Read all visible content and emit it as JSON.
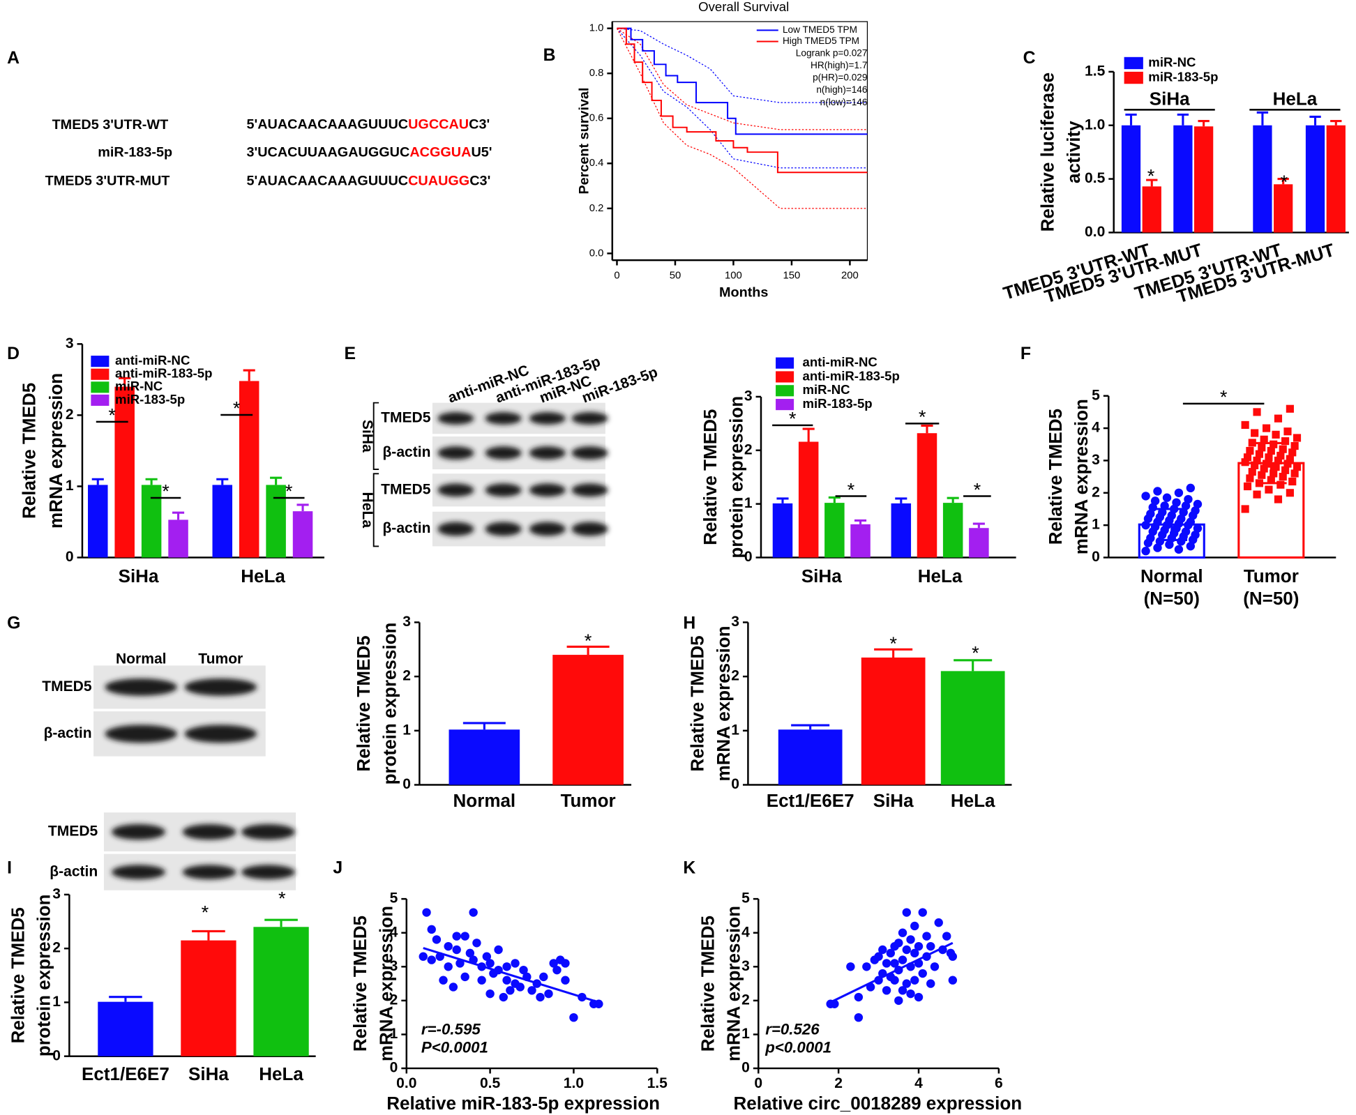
{
  "chart_data": [
    {
      "type": "sequence",
      "panel": "A",
      "site_color": "#ff0000",
      "rows": [
        {
          "label": "TMED5 3'UTR-WT",
          "seq": "5'AUACAACAAAGUUUC",
          "site": "UGCCAU",
          "end": "C3'"
        },
        {
          "label": "miR-183-5p",
          "seq": "3'UCACUUAAGAUGGUC",
          "site": "ACGGUA",
          "end": "U5'"
        },
        {
          "label": "TMED5 3'UTR-MUT",
          "seq": "5'AUACAACAAAGUUUC",
          "site": "CUAUGG",
          "end": "C3'"
        }
      ]
    },
    {
      "type": "line",
      "panel": "B",
      "title": "Overall Survival",
      "xlabel": "Months",
      "ylabel": "Percent survival",
      "xlim": [
        -4,
        215
      ],
      "xticks": [
        0,
        50,
        100,
        150,
        200
      ],
      "ylim": [
        -0.03,
        1.03
      ],
      "yticks": [
        {
          "value": 0,
          "label": "0.0"
        },
        0.2,
        0.4,
        0.6,
        0.8,
        {
          "value": 1,
          "label": "1.0"
        }
      ],
      "series": [
        {
          "name": "Low TMED5 TPM",
          "color": "#0000ff",
          "x": [
            0,
            12,
            12,
            22,
            22,
            32,
            32,
            42,
            42,
            52,
            52,
            68,
            68,
            95,
            95,
            102,
            102,
            215
          ],
          "values": [
            1,
            1,
            0.95,
            0.95,
            0.9,
            0.9,
            0.84,
            0.84,
            0.79,
            0.79,
            0.76,
            0.76,
            0.67,
            0.67,
            0.6,
            0.6,
            0.53,
            0.53
          ]
        },
        {
          "name": "High TMED5 TPM",
          "color": "#ff0000",
          "x": [
            0,
            8,
            8,
            15,
            15,
            22,
            22,
            30,
            30,
            38,
            38,
            48,
            48,
            60,
            60,
            85,
            85,
            100,
            100,
            112,
            112,
            138,
            138,
            215
          ],
          "values": [
            1,
            1,
            0.93,
            0.93,
            0.85,
            0.85,
            0.76,
            0.76,
            0.68,
            0.68,
            0.61,
            0.61,
            0.56,
            0.56,
            0.54,
            0.54,
            0.5,
            0.5,
            0.47,
            0.47,
            0.45,
            0.45,
            0.36,
            0.36
          ]
        }
      ],
      "bands": [
        {
          "color": "#0000ff",
          "x": [
            0,
            20,
            40,
            60,
            80,
            100,
            140,
            215
          ],
          "values": [
            1,
            0.99,
            0.93,
            0.88,
            0.82,
            0.7,
            0.67,
            0.67
          ]
        },
        {
          "color": "#0000ff",
          "x": [
            0,
            20,
            40,
            60,
            80,
            100,
            140,
            215
          ],
          "values": [
            1,
            0.88,
            0.72,
            0.65,
            0.55,
            0.42,
            0.38,
            0.38
          ]
        },
        {
          "color": "#ff0000",
          "x": [
            0,
            20,
            40,
            60,
            80,
            100,
            140,
            215
          ],
          "values": [
            1,
            0.93,
            0.75,
            0.66,
            0.62,
            0.58,
            0.55,
            0.55
          ]
        },
        {
          "color": "#ff0000",
          "x": [
            0,
            20,
            40,
            60,
            80,
            100,
            140,
            215
          ],
          "values": [
            1,
            0.8,
            0.58,
            0.48,
            0.44,
            0.38,
            0.2,
            0.2
          ]
        }
      ],
      "annotations": [
        "Logrank p=0.027",
        "HR(high)=1.7",
        "p(HR)=0.029",
        "n(high)=146",
        "n(low)=146"
      ]
    },
    {
      "type": "bar",
      "panel": "C",
      "ylabel": [
        "Relative luciferase",
        "activity"
      ],
      "categories": [
        "TMED5 3'UTR-WT",
        "TMED5 3'UTR-MUT",
        "TMED5 3'UTR-WT",
        "TMED5 3'UTR-MUT"
      ],
      "groups": [
        "SiHa",
        "HeLa"
      ],
      "ylim": [
        0,
        1.5
      ],
      "yticks": [
        {
          "value": 0,
          "label": "0.0"
        },
        0.5,
        {
          "value": 1,
          "label": "1.0"
        },
        1.5
      ],
      "series": [
        {
          "name": "miR-NC",
          "color": "#0a0aff",
          "values": [
            1.0,
            1.0,
            1.0,
            1.0
          ],
          "errors": [
            0.1,
            0.1,
            0.12,
            0.08
          ]
        },
        {
          "name": "miR-183-5p",
          "color": "#ff0a0a",
          "values": [
            0.43,
            0.99,
            0.45,
            1.0
          ],
          "errors": [
            0.06,
            0.05,
            0.05,
            0.04
          ]
        }
      ],
      "significance_label": "*"
    },
    {
      "type": "bar",
      "panel": "D",
      "ylabel": [
        "Relative TMED5",
        "mRNA expression"
      ],
      "categories": [
        "SiHa",
        "HeLa"
      ],
      "ylim": [
        0,
        3
      ],
      "yticks": [
        0,
        1,
        2,
        3
      ],
      "series": [
        {
          "name": "anti-miR-NC",
          "color": "#0a0aff",
          "values": [
            1.02,
            1.02
          ],
          "errors": [
            0.08,
            0.08
          ]
        },
        {
          "name": "anti-miR-183-5p",
          "color": "#ff0a0a",
          "values": [
            2.4,
            2.48
          ],
          "errors": [
            0.12,
            0.15
          ]
        },
        {
          "name": "miR-NC",
          "color": "#10c010",
          "values": [
            1.02,
            1.02
          ],
          "errors": [
            0.08,
            0.1
          ]
        },
        {
          "name": "miR-183-5p",
          "color": "#a31ff0",
          "values": [
            0.53,
            0.65
          ],
          "errors": [
            0.1,
            0.09
          ]
        }
      ],
      "significance_label": "*"
    },
    {
      "type": "bar",
      "panel": "E",
      "ylabel": [
        "Relative TMED5",
        "protein expression"
      ],
      "categories": [
        "SiHa",
        "HeLa"
      ],
      "ylim": [
        0,
        3
      ],
      "yticks": [
        0,
        1,
        2,
        3
      ],
      "series": [
        {
          "name": "anti-miR-NC",
          "color": "#0a0aff",
          "values": [
            1.01,
            1.01
          ],
          "errors": [
            0.09,
            0.09
          ]
        },
        {
          "name": "anti-miR-183-5p",
          "color": "#ff0a0a",
          "values": [
            2.16,
            2.32
          ],
          "errors": [
            0.24,
            0.14
          ]
        },
        {
          "name": "miR-NC",
          "color": "#10c010",
          "values": [
            1.02,
            1.02
          ],
          "errors": [
            0.1,
            0.09
          ]
        },
        {
          "name": "miR-183-5p",
          "color": "#a31ff0",
          "values": [
            0.62,
            0.55
          ],
          "errors": [
            0.07,
            0.08
          ]
        }
      ],
      "blot": {
        "lanes": [
          "anti-miR-NC",
          "anti-miR-183-5p",
          "miR-NC",
          "miR-183-5p"
        ],
        "rows": [
          "TMED5",
          "β-actin",
          "TMED5",
          "β-actin"
        ],
        "groups": [
          "SiHa",
          "HeLa"
        ]
      },
      "significance_label": "*"
    },
    {
      "type": "dotbar",
      "panel": "F",
      "ylabel": [
        "Relative TMED5",
        "mRNA expression"
      ],
      "categories": [
        [
          "Normal",
          "(N=50)"
        ],
        [
          "Tumor",
          "(N=50)"
        ]
      ],
      "ylim": [
        0,
        5
      ],
      "yticks": [
        0,
        1,
        2,
        3,
        4,
        5
      ],
      "values": [
        1.02,
        2.92
      ],
      "errors": [
        0.48,
        0.62
      ],
      "colors": [
        "#0a0aff",
        "#ff0a0a"
      ],
      "points": [
        [
          0.2,
          0.25,
          0.3,
          0.35,
          0.4,
          0.45,
          0.5,
          0.5,
          0.55,
          0.6,
          0.6,
          0.65,
          0.7,
          0.7,
          0.75,
          0.8,
          0.8,
          0.85,
          0.9,
          0.9,
          0.95,
          1.0,
          1.0,
          1.0,
          1.05,
          1.1,
          1.1,
          1.15,
          1.2,
          1.2,
          1.25,
          1.3,
          1.3,
          1.35,
          1.4,
          1.4,
          1.45,
          1.5,
          1.55,
          1.6,
          1.6,
          1.65,
          1.7,
          1.75,
          1.8,
          1.85,
          1.9,
          2.0,
          2.05,
          2.15
        ],
        [
          1.5,
          1.8,
          1.95,
          2.0,
          2.1,
          2.2,
          2.25,
          2.3,
          2.35,
          2.4,
          2.45,
          2.5,
          2.55,
          2.6,
          2.6,
          2.65,
          2.7,
          2.75,
          2.8,
          2.8,
          2.85,
          2.9,
          2.9,
          2.95,
          3.0,
          3.0,
          3.05,
          3.1,
          3.1,
          3.15,
          3.2,
          3.25,
          3.3,
          3.3,
          3.35,
          3.4,
          3.45,
          3.5,
          3.55,
          3.6,
          3.65,
          3.7,
          3.8,
          3.85,
          3.9,
          4.0,
          4.1,
          4.3,
          4.5,
          4.6
        ]
      ],
      "markers": [
        "circle",
        "square"
      ],
      "significance_label": "*"
    },
    {
      "type": "bar",
      "panel": "G",
      "ylabel": [
        "Relative TMED5",
        "protein expression"
      ],
      "categories": [
        "Normal",
        "Tumor"
      ],
      "ylim": [
        0,
        3
      ],
      "yticks": [
        0,
        1,
        2,
        3
      ],
      "values": [
        1.02,
        2.4
      ],
      "errors": [
        0.12,
        0.15
      ],
      "colors": [
        "#0a0aff",
        "#ff0a0a"
      ],
      "blot": {
        "lanes": [
          "Normal",
          "Tumor"
        ],
        "rows": [
          "TMED5",
          "β-actin"
        ]
      },
      "significance_label": "*"
    },
    {
      "type": "bar",
      "panel": "H",
      "ylabel": [
        "Relative TMED5",
        "mRNA expression"
      ],
      "categories": [
        "Ect1/E6E7",
        "SiHa",
        "HeLa"
      ],
      "ylim": [
        0,
        3
      ],
      "yticks": [
        0,
        1,
        2,
        3
      ],
      "values": [
        1.02,
        2.35,
        2.1
      ],
      "errors": [
        0.08,
        0.15,
        0.2
      ],
      "colors": [
        "#0a0aff",
        "#ff0a0a",
        "#10c010"
      ],
      "significance_label": "*"
    },
    {
      "type": "bar",
      "panel": "I",
      "ylabel": [
        "Relative TMED5",
        "protein expression"
      ],
      "categories": [
        "Ect1/E6E7",
        "SiHa",
        "HeLa"
      ],
      "ylim": [
        0,
        3
      ],
      "yticks": [
        0,
        1,
        2,
        3
      ],
      "values": [
        1.01,
        2.15,
        2.4
      ],
      "errors": [
        0.09,
        0.17,
        0.13
      ],
      "colors": [
        "#0a0aff",
        "#ff0a0a",
        "#10c010"
      ],
      "blot": {
        "rows": [
          "TMED5",
          "β-actin"
        ]
      },
      "significance_label": "*"
    },
    {
      "type": "scatter",
      "panel": "J",
      "ylabel": [
        "Relative TMED5",
        "mRNA expression"
      ],
      "xlabel": "Relative miR-183-5p expression",
      "xlim": [
        0,
        1.5
      ],
      "xticks": [
        {
          "value": 0,
          "label": "0.0"
        },
        0.5,
        {
          "value": 1,
          "label": "1.0"
        },
        1.5
      ],
      "ylim": [
        0,
        5
      ],
      "yticks": [
        0,
        1,
        2,
        3,
        4,
        5
      ],
      "color": "#0a0aff",
      "x": [
        0.1,
        0.12,
        0.15,
        0.15,
        0.18,
        0.2,
        0.22,
        0.25,
        0.25,
        0.28,
        0.3,
        0.3,
        0.32,
        0.35,
        0.35,
        0.38,
        0.4,
        0.4,
        0.42,
        0.45,
        0.45,
        0.48,
        0.5,
        0.5,
        0.52,
        0.55,
        0.55,
        0.58,
        0.6,
        0.6,
        0.62,
        0.65,
        0.65,
        0.68,
        0.7,
        0.72,
        0.75,
        0.78,
        0.8,
        0.82,
        0.85,
        0.88,
        0.9,
        0.92,
        0.95,
        0.95,
        1.0,
        1.05,
        1.12,
        1.15
      ],
      "y": [
        3.3,
        4.6,
        4.1,
        3.2,
        3.8,
        3.3,
        2.6,
        3.6,
        3.0,
        2.4,
        3.9,
        3.5,
        3.1,
        3.9,
        2.7,
        3.4,
        4.6,
        3.2,
        3.7,
        3.0,
        2.6,
        3.3,
        2.2,
        3.1,
        2.8,
        2.9,
        3.5,
        2.1,
        2.6,
        3.0,
        2.3,
        3.1,
        2.5,
        2.4,
        2.9,
        2.7,
        2.3,
        2.5,
        2.1,
        2.7,
        2.2,
        3.1,
        2.9,
        3.2,
        2.6,
        3.1,
        1.5,
        2.1,
        1.9,
        1.9
      ],
      "fit": {
        "x": [
          0.1,
          1.15
        ],
        "y": [
          3.55,
          1.95
        ]
      },
      "annotations": [
        "r=-0.595",
        "P<0.0001"
      ]
    },
    {
      "type": "scatter",
      "panel": "K",
      "ylabel": [
        "Relative TMED5",
        "mRNA expression"
      ],
      "xlabel": "Relative circ_0018289 expression",
      "xlim": [
        0,
        6
      ],
      "xticks": [
        0,
        2,
        4,
        6
      ],
      "ylim": [
        0,
        5
      ],
      "yticks": [
        0,
        1,
        2,
        3,
        4,
        5
      ],
      "color": "#0a0aff",
      "x": [
        1.8,
        1.9,
        2.3,
        2.5,
        2.5,
        2.7,
        2.8,
        2.9,
        3.0,
        3.0,
        3.1,
        3.1,
        3.2,
        3.2,
        3.3,
        3.3,
        3.4,
        3.4,
        3.4,
        3.5,
        3.5,
        3.5,
        3.6,
        3.6,
        3.6,
        3.7,
        3.7,
        3.7,
        3.8,
        3.8,
        3.8,
        3.9,
        3.9,
        3.9,
        4.0,
        4.0,
        4.0,
        4.1,
        4.1,
        4.2,
        4.2,
        4.3,
        4.3,
        4.4,
        4.5,
        4.6,
        4.7,
        4.8,
        4.85,
        4.85
      ],
      "y": [
        1.9,
        1.9,
        3.0,
        1.5,
        2.1,
        3.0,
        2.4,
        3.2,
        2.6,
        3.3,
        2.8,
        3.5,
        2.3,
        3.1,
        2.7,
        3.4,
        2.6,
        3.1,
        3.6,
        2.0,
        2.9,
        3.7,
        2.3,
        3.2,
        4.0,
        2.5,
        3.5,
        4.6,
        2.2,
        3.0,
        3.8,
        2.6,
        3.4,
        4.2,
        2.1,
        3.1,
        3.6,
        4.6,
        2.8,
        3.3,
        3.9,
        2.5,
        3.6,
        3.0,
        4.3,
        3.5,
        3.9,
        3.4,
        3.3,
        2.6
      ],
      "fit": {
        "x": [
          1.8,
          4.85
        ],
        "y": [
          1.95,
          3.7
        ]
      },
      "annotations": [
        "r=0.526",
        "p<0.0001"
      ]
    }
  ]
}
